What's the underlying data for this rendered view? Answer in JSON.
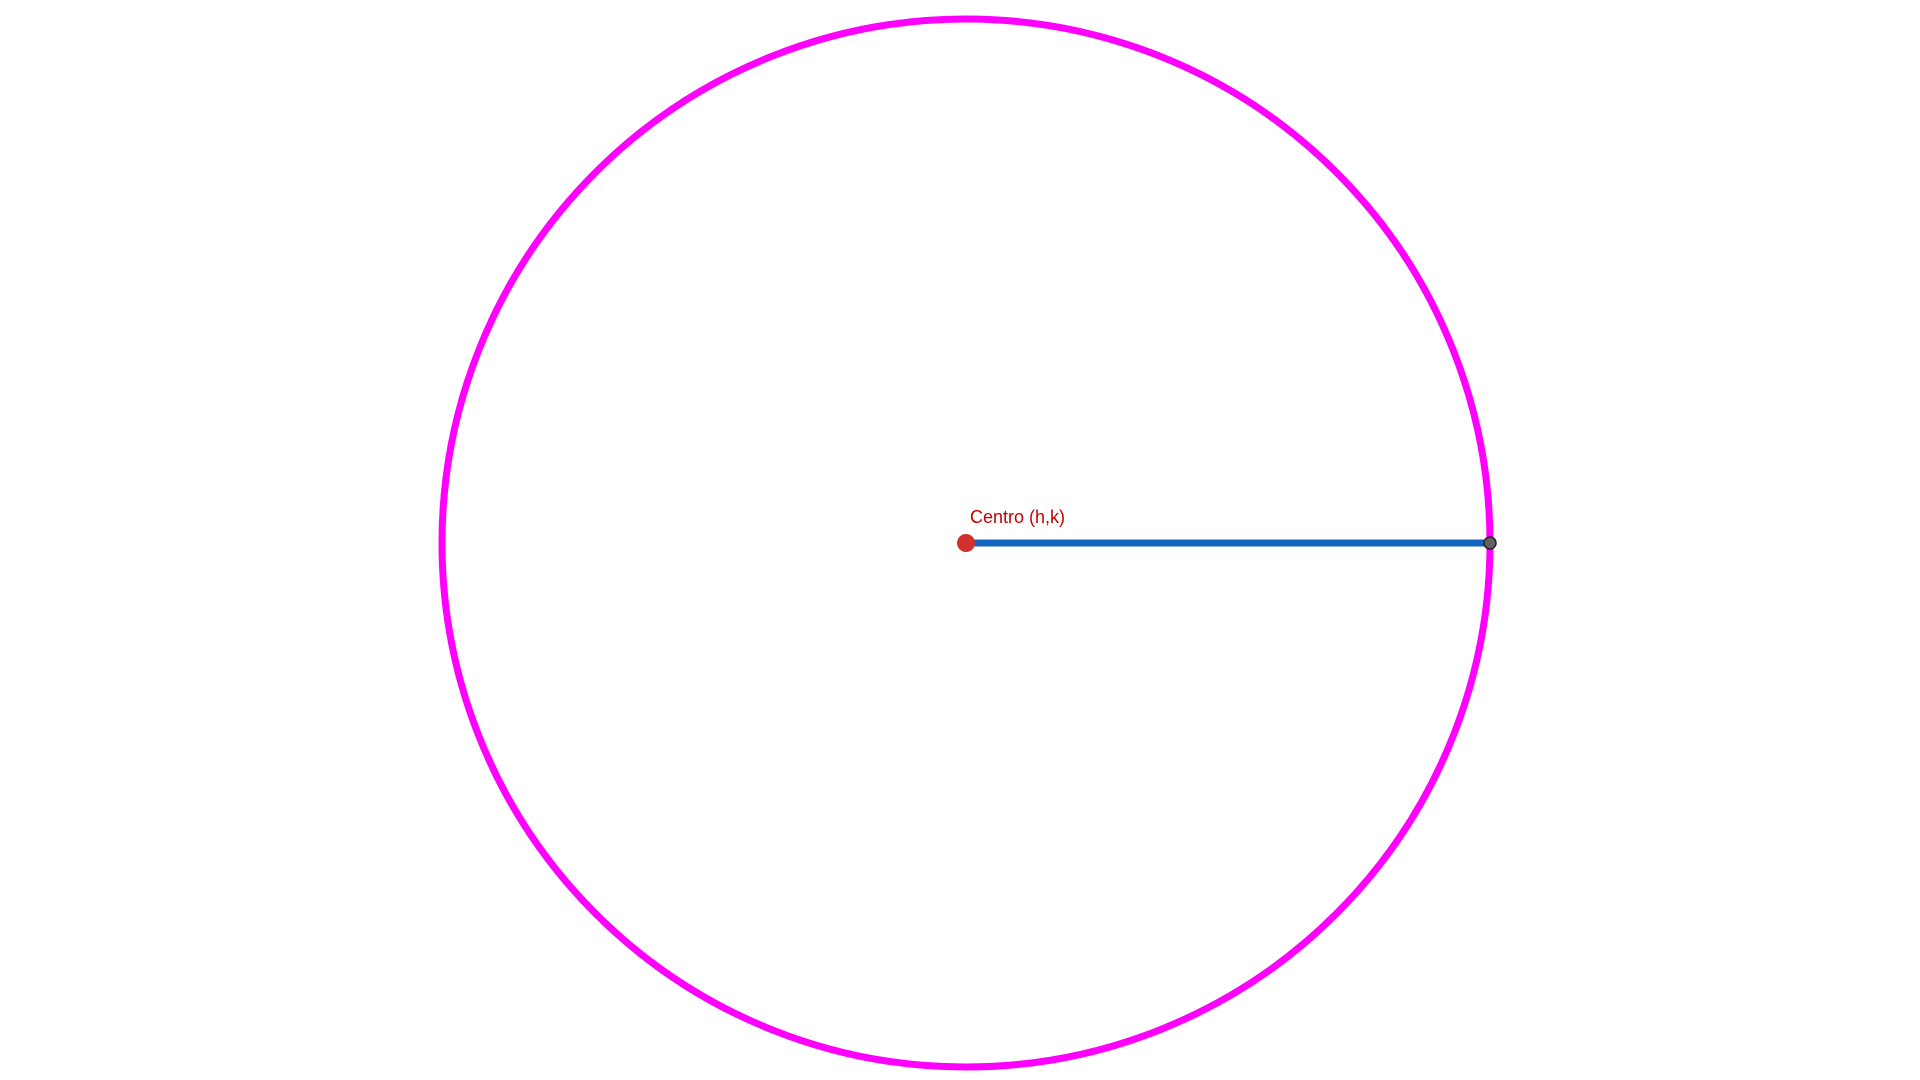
{
  "diagram": {
    "center_label": "Centro (h,k)",
    "colors": {
      "background": "#ffffff",
      "circle": "#ff00ff",
      "radius": "#1565c0",
      "center_point": "#d32f2f",
      "label": "#c40000",
      "endpoint_fill": "#616161",
      "endpoint_stroke": "#222222"
    }
  }
}
